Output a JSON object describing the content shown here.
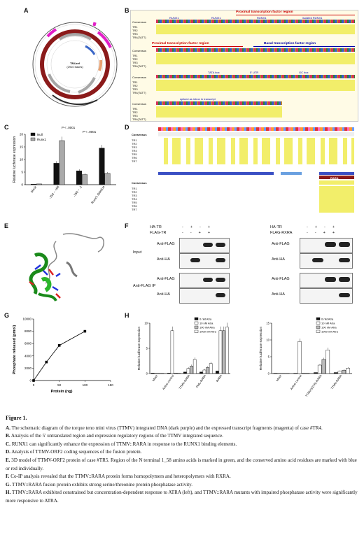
{
  "panels": {
    "A": "A",
    "B": "B",
    "C": "C",
    "D": "D",
    "E": "E",
    "F": "F",
    "G": "G",
    "H": "H"
  },
  "panel_a": {
    "center_label": "TR4.ref",
    "center_sub": "(2910 bases)",
    "colors": {
      "ring_dark": "#8b1a1a",
      "ring_outer": "#555555",
      "magenta": "#e21fc7",
      "gray": "#a6a6a6"
    }
  },
  "panel_b": {
    "proximal_region": "Proximal transcription factor region",
    "basal_region": "Basal transcription factor region",
    "consensus": "Consensus",
    "runx1_labels": [
      "RUNX1",
      "RUNX1",
      "RUNX1",
      "isolated RUNX1"
    ],
    "tata_box": "TATA box",
    "utr": "5' UTR",
    "gc_box": "GC box",
    "spliced": "spliced as intron in transcript",
    "seq_rows": [
      "TR1",
      "TR2",
      "TR3",
      "TR4(TATT)"
    ]
  },
  "panel_c": {
    "ylabel": "Relative luciferase expression",
    "legend": [
      "Null",
      "Runx1"
    ],
    "pvals": [
      "P < .0001",
      "P < .0001"
    ],
    "categories": [
      "Mock",
      "-750 ~ +58",
      "-750 ~ -1",
      "Runx1 deletion"
    ]
  },
  "panel_d": {
    "consensus": "Consensus",
    "rows": [
      "TR1",
      "TR2",
      "TR3",
      "TR4",
      "TR5",
      "TR6",
      "TR7"
    ],
    "rara": "RARA"
  },
  "panel_f": {
    "left_treat": [
      "HA-TR",
      "FLAG-TR"
    ],
    "right_treat": [
      "HA-TR",
      "FLAG-RXRA"
    ],
    "input": "Input",
    "ip": "Anti-FLAG IP",
    "anti_flag": "Anti-FLAG",
    "anti_ha": "Anti-HA"
  },
  "panel_h": {
    "ylabel": "Relative luciferase expression",
    "legend": [
      "0 nM Atra",
      "10 nM Atra",
      "100 nM Atra",
      "1000 nM Atra"
    ]
  },
  "chart_data": [
    {
      "type": "bar",
      "panel": "C",
      "ylabel": "Relative luciferase expression",
      "categories": [
        "Mock",
        "-750 ~ +58",
        "-750 ~ -1",
        "Runx1 deletion"
      ],
      "series": [
        {
          "name": "Null",
          "values": [
            0.2,
            8.5,
            5.5,
            14.5
          ]
        },
        {
          "name": "Runx1",
          "values": [
            0.3,
            17.5,
            4.0,
            4.5
          ]
        }
      ],
      "ylim": [
        0,
        20
      ],
      "yticks": [
        0,
        5,
        10,
        15,
        20
      ],
      "colors": [
        "#111111",
        "#aaaaaa"
      ],
      "annotations": [
        "P < .0001",
        "P < .0001"
      ]
    },
    {
      "type": "line",
      "panel": "G",
      "xlabel": "Protein (ng)",
      "ylabel": "Phosphate released (pmol)",
      "x": [
        0,
        25,
        50,
        100
      ],
      "y": [
        0,
        3000,
        5700,
        8000
      ],
      "xlim": [
        0,
        100
      ],
      "ylim": [
        0,
        10000
      ],
      "xticks": [
        0,
        50,
        100,
        150
      ],
      "yticks": [
        0,
        2000,
        4000,
        6000,
        8000,
        10000
      ]
    },
    {
      "type": "bar",
      "panel": "H-left",
      "ylabel": "Relative luciferase expression",
      "categories": [
        "Mock",
        "Active control",
        "TTMV-RARA",
        "PML-RARA",
        "RARA"
      ],
      "series": [
        {
          "name": "0 nM Atra",
          "values": [
            0.1,
            0.1,
            0.3,
            0.3,
            0.5
          ]
        },
        {
          "name": "10 nM Atra",
          "values": [
            0.05,
            8.5,
            1.0,
            0.7,
            8.5
          ]
        },
        {
          "name": "100 nM Atra",
          "values": [
            0.05,
            0.1,
            1.5,
            1.2,
            8.5
          ]
        },
        {
          "name": "1000 nM Atra",
          "values": [
            0.05,
            0.1,
            2.8,
            2.0,
            9.2
          ]
        }
      ],
      "ylim": [
        0,
        10
      ],
      "yticks": [
        0,
        5,
        10
      ],
      "colors": [
        "#111111",
        "#ffffff",
        "#bbbbbb",
        "#ffffff"
      ]
    },
    {
      "type": "bar",
      "panel": "H-right",
      "ylabel": "Relative luciferase expression",
      "categories": [
        "Mock",
        "Active control",
        "TTMV(S27A)-RARA",
        "TTMV-RARA"
      ],
      "series": [
        {
          "name": "0 nM Atra",
          "values": [
            0.1,
            0.1,
            0.3,
            0.3
          ]
        },
        {
          "name": "10 nM Atra",
          "values": [
            0.05,
            9.5,
            2.5,
            0.7
          ]
        },
        {
          "name": "100 nM Atra",
          "values": [
            0.05,
            0.1,
            4.2,
            1.0
          ]
        },
        {
          "name": "1000 nM Atra",
          "values": [
            0.05,
            0.1,
            7.0,
            1.6
          ]
        }
      ],
      "ylim": [
        0,
        15
      ],
      "yticks": [
        0,
        5,
        10,
        15
      ],
      "colors": [
        "#111111",
        "#ffffff",
        "#bbbbbb",
        "#ffffff"
      ]
    }
  ],
  "caption": {
    "title": "Figure 1.",
    "items": [
      {
        "key": "A.",
        "text": "The schematic diagram of the torque teno mini virus (TTMV) integrated DNA (dark purple) and the expressed transcript fragments (magenta) of case #TR4."
      },
      {
        "key": "B.",
        "text": "Analysis of the 5' untranslated region and expression regulatory regions of the TTMV integrated sequence."
      },
      {
        "key": "C.",
        "text": "RUNX1 can significantly enhance the expression of TTMV::RARA in response to the RUNX1 binding elements."
      },
      {
        "key": "D.",
        "text": "Analysis of  TTMV-ORF2 coding sequences of the fusion protein."
      },
      {
        "key": "E.",
        "text": "3D model of TTMV-ORF2 protein of case #TR5. Region of the N terminal 1_58 amino acids is marked in green, and the conserved amino acid residues are marked with blue or red individually."
      },
      {
        "key": "F.",
        "text": "Co-IP analysis revealed that the TTMV::RARA protein forms homopolymers and heteropolymers with RXRA."
      },
      {
        "key": "G.",
        "text": "TTMV::RARA fusion protein exhibits strong serine/threonine protein phosphatase activity."
      },
      {
        "key": "H.",
        "text": "TTMV::RARA exhibited constrained but concentration-dependent response to ATRA (left), and TTMV::RARA mutants with impaired phosphatase activity were significantly more responsive to ATRA."
      }
    ]
  }
}
